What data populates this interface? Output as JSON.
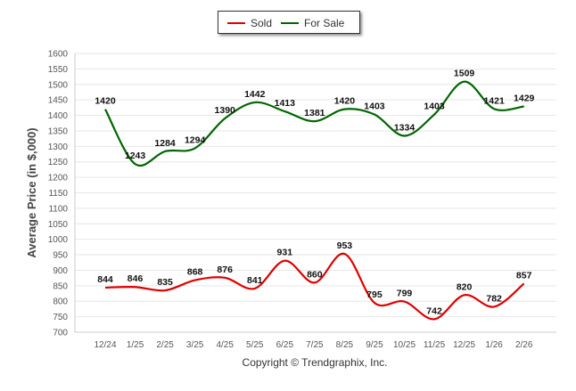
{
  "legend": {
    "sold_label": "Sold",
    "for_sale_label": "For Sale"
  },
  "footer": {
    "copyright": "Copyright © Trendgraphix, Inc."
  },
  "colors": {
    "sold": "#e00000",
    "for_sale": "#006600",
    "grid": "#e6e6e6",
    "axis_text": "#555555",
    "label_text": "#111111"
  },
  "chart_data": {
    "type": "line",
    "ylabel": "Average Price (in $,000)",
    "xlabel": "",
    "ylim": [
      700,
      1600
    ],
    "yticks": [
      700,
      750,
      800,
      850,
      900,
      950,
      1000,
      1050,
      1100,
      1150,
      1200,
      1250,
      1300,
      1350,
      1400,
      1450,
      1500,
      1550,
      1600
    ],
    "categories": [
      "12/24",
      "1/25",
      "2/25",
      "3/25",
      "4/25",
      "5/25",
      "6/25",
      "7/25",
      "8/25",
      "9/25",
      "10/25",
      "11/25",
      "12/25",
      "1/26",
      "2/26"
    ],
    "series": [
      {
        "name": "Sold",
        "color": "#e00000",
        "values": [
          844,
          846,
          835,
          868,
          876,
          841,
          931,
          860,
          953,
          795,
          799,
          742,
          820,
          782,
          857
        ]
      },
      {
        "name": "For Sale",
        "color": "#006600",
        "values": [
          1420,
          1243,
          1284,
          1294,
          1390,
          1442,
          1413,
          1381,
          1420,
          1403,
          1334,
          1403,
          1509,
          1421,
          1429
        ]
      }
    ]
  }
}
